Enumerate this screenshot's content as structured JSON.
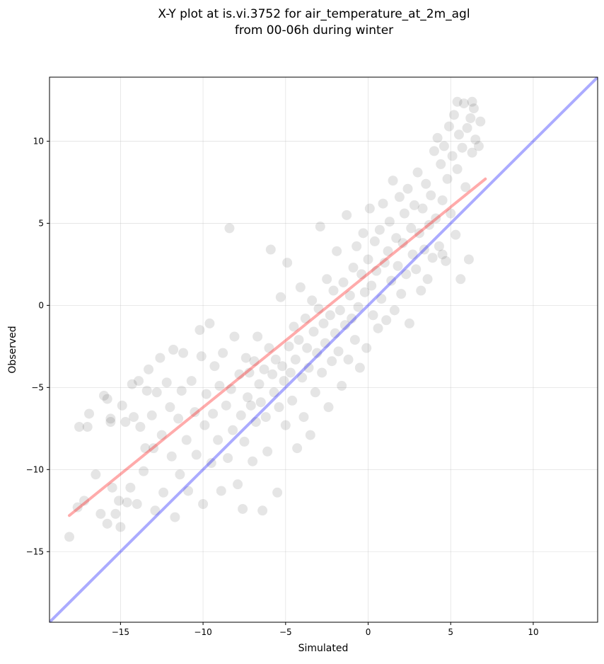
{
  "chart_data": {
    "type": "scatter",
    "title_line1": "X-Y plot at is.vi.3752 for air_temperature_at_2m_agl",
    "title_line2": "from 00-06h during winter",
    "xlabel": "Simulated",
    "ylabel": "Observed",
    "xlim": [
      -19.3,
      13.9
    ],
    "ylim": [
      -19.3,
      13.9
    ],
    "x_ticks": [
      -15,
      -10,
      -5,
      0,
      5,
      10
    ],
    "y_ticks": [
      -15,
      -10,
      -5,
      0,
      5,
      10
    ],
    "x_tick_labels": [
      "−15",
      "−10",
      "−5",
      "0",
      "5",
      "10"
    ],
    "y_tick_labels": [
      "−15",
      "−10",
      "−5",
      "0",
      "5",
      "10"
    ],
    "grid": true,
    "regression_line": {
      "x": [
        -18.1,
        7.1
      ],
      "y": [
        -12.8,
        7.7
      ],
      "color": "#ff0000"
    },
    "identity_line": {
      "x": [
        -19.3,
        13.9
      ],
      "y": [
        -19.3,
        13.9
      ],
      "color": "#0000ff"
    },
    "point_color": "#000000",
    "points": [
      [
        -18.1,
        -14.1
      ],
      [
        -17.6,
        -12.3
      ],
      [
        -17.5,
        -7.4
      ],
      [
        -17.2,
        -11.9
      ],
      [
        -17.0,
        -7.4
      ],
      [
        -16.9,
        -6.6
      ],
      [
        -16.5,
        -10.3
      ],
      [
        -16.2,
        -12.7
      ],
      [
        -16.0,
        -5.5
      ],
      [
        -15.8,
        -5.7
      ],
      [
        -15.8,
        -13.3
      ],
      [
        -15.6,
        -7.1
      ],
      [
        -15.6,
        -6.9
      ],
      [
        -15.5,
        -11.1
      ],
      [
        -15.3,
        -12.7
      ],
      [
        -15.1,
        -11.9
      ],
      [
        -15.0,
        -13.5
      ],
      [
        -14.9,
        -6.1
      ],
      [
        -14.7,
        -7.1
      ],
      [
        -14.6,
        -12.0
      ],
      [
        -14.4,
        -11.1
      ],
      [
        -14.3,
        -4.8
      ],
      [
        -14.2,
        -6.8
      ],
      [
        -14.0,
        -12.1
      ],
      [
        -13.9,
        -4.6
      ],
      [
        -13.8,
        -7.4
      ],
      [
        -13.6,
        -10.1
      ],
      [
        -13.5,
        -8.7
      ],
      [
        -13.4,
        -5.2
      ],
      [
        -13.3,
        -3.9
      ],
      [
        -13.1,
        -6.7
      ],
      [
        -13.0,
        -8.7
      ],
      [
        -12.9,
        -12.5
      ],
      [
        -12.8,
        -5.3
      ],
      [
        -12.6,
        -3.2
      ],
      [
        -12.5,
        -7.9
      ],
      [
        -12.4,
        -11.4
      ],
      [
        -12.2,
        -4.7
      ],
      [
        -12.0,
        -6.2
      ],
      [
        -11.9,
        -9.2
      ],
      [
        -11.8,
        -2.7
      ],
      [
        -11.7,
        -12.9
      ],
      [
        -11.5,
        -6.9
      ],
      [
        -11.4,
        -10.3
      ],
      [
        -11.3,
        -5.2
      ],
      [
        -11.2,
        -2.9
      ],
      [
        -11.0,
        -8.2
      ],
      [
        -10.9,
        -11.3
      ],
      [
        -10.7,
        -4.6
      ],
      [
        -10.5,
        -6.5
      ],
      [
        -10.4,
        -9.1
      ],
      [
        -10.2,
        -1.5
      ],
      [
        -10.1,
        -3.1
      ],
      [
        -10.0,
        -12.1
      ],
      [
        -9.9,
        -7.3
      ],
      [
        -9.8,
        -5.4
      ],
      [
        -9.6,
        -1.1
      ],
      [
        -9.5,
        -9.6
      ],
      [
        -9.4,
        -6.6
      ],
      [
        -9.3,
        -3.7
      ],
      [
        -9.1,
        -8.2
      ],
      [
        -9.0,
        -4.9
      ],
      [
        -8.9,
        -11.3
      ],
      [
        -8.8,
        -2.9
      ],
      [
        -8.6,
        -6.1
      ],
      [
        -8.5,
        -9.3
      ],
      [
        -8.4,
        4.7
      ],
      [
        -8.3,
        -5.1
      ],
      [
        -8.2,
        -7.6
      ],
      [
        -8.1,
        -1.9
      ],
      [
        -7.9,
        -10.9
      ],
      [
        -7.8,
        -4.2
      ],
      [
        -7.7,
        -6.7
      ],
      [
        -7.6,
        -12.4
      ],
      [
        -7.5,
        -8.3
      ],
      [
        -7.4,
        -3.2
      ],
      [
        -7.3,
        -5.6
      ],
      [
        -7.2,
        -4.1
      ],
      [
        -7.1,
        -6.1
      ],
      [
        -7.0,
        -9.5
      ],
      [
        -6.9,
        -3.4
      ],
      [
        -6.8,
        -7.1
      ],
      [
        -6.7,
        -1.9
      ],
      [
        -6.6,
        -4.8
      ],
      [
        -6.5,
        -5.9
      ],
      [
        -6.4,
        -12.5
      ],
      [
        -6.3,
        -3.9
      ],
      [
        -6.2,
        -6.8
      ],
      [
        -6.1,
        -8.9
      ],
      [
        -6.0,
        -2.6
      ],
      [
        -5.9,
        3.4
      ],
      [
        -5.8,
        -4.2
      ],
      [
        -5.7,
        -5.3
      ],
      [
        -5.6,
        -3.3
      ],
      [
        -5.5,
        -11.4
      ],
      [
        -5.4,
        -6.2
      ],
      [
        -5.3,
        0.5
      ],
      [
        -5.2,
        -3.7
      ],
      [
        -5.1,
        -4.6
      ],
      [
        -5.0,
        -7.3
      ],
      [
        -4.9,
        2.6
      ],
      [
        -4.8,
        -2.5
      ],
      [
        -4.7,
        -4.1
      ],
      [
        -4.6,
        -5.8
      ],
      [
        -4.5,
        -1.3
      ],
      [
        -4.4,
        -3.3
      ],
      [
        -4.3,
        -8.7
      ],
      [
        -4.2,
        -2.1
      ],
      [
        -4.1,
        1.1
      ],
      [
        -4.0,
        -4.4
      ],
      [
        -3.9,
        -6.8
      ],
      [
        -3.8,
        -0.8
      ],
      [
        -3.7,
        -2.6
      ],
      [
        -3.6,
        -3.8
      ],
      [
        -3.5,
        -7.9
      ],
      [
        -3.4,
        0.3
      ],
      [
        -3.3,
        -1.6
      ],
      [
        -3.2,
        -5.3
      ],
      [
        -3.1,
        -2.9
      ],
      [
        -3.0,
        -0.2
      ],
      [
        -2.9,
        4.8
      ],
      [
        -2.8,
        -4.1
      ],
      [
        -2.7,
        -1.1
      ],
      [
        -2.6,
        -2.3
      ],
      [
        -2.5,
        1.6
      ],
      [
        -2.4,
        -6.2
      ],
      [
        -2.3,
        -0.6
      ],
      [
        -2.2,
        -3.4
      ],
      [
        -2.1,
        0.9
      ],
      [
        -2.0,
        -1.7
      ],
      [
        -1.9,
        3.3
      ],
      [
        -1.8,
        -2.8
      ],
      [
        -1.7,
        -0.3
      ],
      [
        -1.6,
        -4.9
      ],
      [
        -1.5,
        1.4
      ],
      [
        -1.4,
        -1.2
      ],
      [
        -1.3,
        5.5
      ],
      [
        -1.2,
        -3.3
      ],
      [
        -1.1,
        0.6
      ],
      [
        -1.0,
        -0.8
      ],
      [
        -0.9,
        2.3
      ],
      [
        -0.8,
        -2.1
      ],
      [
        -0.7,
        3.6
      ],
      [
        -0.6,
        -0.1
      ],
      [
        -0.5,
        -3.8
      ],
      [
        -0.4,
        1.9
      ],
      [
        -0.3,
        4.4
      ],
      [
        -0.2,
        0.8
      ],
      [
        -0.1,
        -2.6
      ],
      [
        0.0,
        2.8
      ],
      [
        0.1,
        5.9
      ],
      [
        0.2,
        1.2
      ],
      [
        0.3,
        -0.6
      ],
      [
        0.4,
        3.9
      ],
      [
        0.5,
        2.1
      ],
      [
        0.6,
        -1.4
      ],
      [
        0.7,
        4.6
      ],
      [
        0.8,
        0.4
      ],
      [
        0.9,
        6.2
      ],
      [
        1.0,
        2.6
      ],
      [
        1.1,
        -0.9
      ],
      [
        1.2,
        3.3
      ],
      [
        1.3,
        5.1
      ],
      [
        1.4,
        1.5
      ],
      [
        1.5,
        7.6
      ],
      [
        1.6,
        -0.3
      ],
      [
        1.7,
        4.1
      ],
      [
        1.8,
        2.4
      ],
      [
        1.9,
        6.6
      ],
      [
        2.0,
        0.7
      ],
      [
        2.1,
        3.8
      ],
      [
        2.2,
        5.6
      ],
      [
        2.3,
        1.9
      ],
      [
        2.4,
        7.1
      ],
      [
        2.5,
        -1.1
      ],
      [
        2.6,
        4.7
      ],
      [
        2.7,
        3.1
      ],
      [
        2.8,
        6.1
      ],
      [
        2.9,
        2.2
      ],
      [
        3.0,
        8.1
      ],
      [
        3.1,
        4.4
      ],
      [
        3.2,
        0.9
      ],
      [
        3.3,
        5.9
      ],
      [
        3.4,
        3.4
      ],
      [
        3.5,
        7.4
      ],
      [
        3.6,
        1.6
      ],
      [
        3.7,
        4.9
      ],
      [
        3.8,
        6.7
      ],
      [
        3.9,
        2.9
      ],
      [
        4.0,
        9.4
      ],
      [
        4.1,
        5.3
      ],
      [
        4.2,
        10.2
      ],
      [
        4.3,
        3.6
      ],
      [
        4.4,
        8.6
      ],
      [
        4.5,
        6.4
      ],
      [
        4.6,
        9.7
      ],
      [
        4.7,
        2.7
      ],
      [
        4.8,
        7.7
      ],
      [
        4.9,
        10.9
      ],
      [
        5.0,
        5.6
      ],
      [
        5.1,
        9.1
      ],
      [
        5.2,
        11.6
      ],
      [
        5.3,
        4.3
      ],
      [
        5.4,
        8.3
      ],
      [
        5.5,
        10.4
      ],
      [
        5.6,
        1.6
      ],
      [
        5.7,
        9.6
      ],
      [
        5.8,
        12.3
      ],
      [
        5.9,
        7.2
      ],
      [
        6.0,
        10.8
      ],
      [
        6.1,
        2.8
      ],
      [
        6.2,
        11.4
      ],
      [
        6.3,
        9.3
      ],
      [
        6.4,
        12.0
      ],
      [
        6.5,
        10.1
      ],
      [
        6.7,
        9.7
      ],
      [
        6.8,
        11.2
      ],
      [
        5.4,
        12.4
      ],
      [
        6.3,
        12.4
      ],
      [
        4.5,
        3.1
      ]
    ]
  }
}
